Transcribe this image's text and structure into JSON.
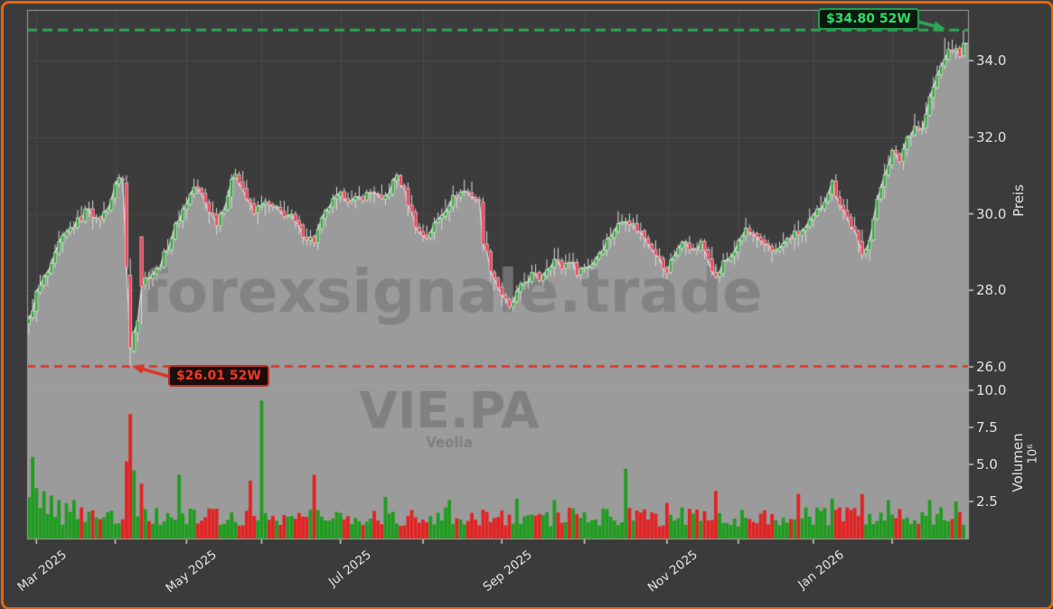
{
  "window": {
    "background": "#3b3b3b",
    "border_color": "#e8640e"
  },
  "chart_data": {
    "type": "candlestick_volume",
    "symbol": "VIE.PA",
    "company": "Veolia",
    "watermark": "forexsignale.trade",
    "price_axis": {
      "label": "Preis",
      "ticks": [
        26.0,
        28.0,
        30.0,
        32.0,
        34.0
      ],
      "tick_labels": [
        "26.0",
        "28.0",
        "30.0",
        "32.0",
        "34.0"
      ],
      "range": [
        25.55,
        35.35
      ]
    },
    "volume_axis": {
      "label": "Volumen",
      "unit": "10⁶",
      "ticks": [
        2.5,
        5.0,
        7.5,
        10.0
      ],
      "tick_labels": [
        "2.5",
        "5.0",
        "7.5",
        "10.0"
      ],
      "range": [
        0,
        10.4
      ]
    },
    "x_axis": {
      "months": [
        {
          "day": 2,
          "label": "Mar 2025"
        },
        {
          "day": 23,
          "label": null
        },
        {
          "day": 42,
          "label": "May 2025"
        },
        {
          "day": 62,
          "label": null
        },
        {
          "day": 83,
          "label": "Jul 2025"
        },
        {
          "day": 105,
          "label": null
        },
        {
          "day": 126,
          "label": "Sep 2025"
        },
        {
          "day": 148,
          "label": null
        },
        {
          "day": 170,
          "label": "Nov 2025"
        },
        {
          "day": 189,
          "label": null
        },
        {
          "day": 209,
          "label": "Jan 2026"
        },
        {
          "day": 230,
          "label": null
        }
      ]
    },
    "annotations": {
      "high_52w": {
        "label": "$34.80 52W",
        "value": 34.8,
        "text_color": "#2ee065",
        "border_color": "#1fa04a",
        "bg": "#0c1710",
        "line_color": "#2aa857"
      },
      "low_52w": {
        "label": "$26.01 52W",
        "value": 26.01,
        "text_color": "#f0382b",
        "border_color": "#bb2f27",
        "bg": "#1a0d0c",
        "line_color": "#dd3327"
      }
    },
    "n_candles": 250,
    "close_anchors": [
      [
        0,
        27.2
      ],
      [
        2,
        27.9
      ],
      [
        4,
        28.3
      ],
      [
        6,
        28.6
      ],
      [
        8,
        29.2
      ],
      [
        11,
        29.6
      ],
      [
        14,
        29.9
      ],
      [
        16,
        30.2
      ],
      [
        18,
        29.8
      ],
      [
        20,
        30.0
      ],
      [
        22,
        30.4
      ],
      [
        24,
        31.0
      ],
      [
        25,
        30.9
      ],
      [
        26,
        28.6
      ],
      [
        27,
        26.4
      ],
      [
        28,
        27.0
      ],
      [
        29,
        27.3
      ],
      [
        30,
        28.2
      ],
      [
        32,
        28.4
      ],
      [
        34,
        28.5
      ],
      [
        36,
        28.9
      ],
      [
        38,
        29.4
      ],
      [
        40,
        29.9
      ],
      [
        42,
        30.3
      ],
      [
        44,
        30.7
      ],
      [
        46,
        30.5
      ],
      [
        48,
        30.1
      ],
      [
        50,
        29.8
      ],
      [
        52,
        30.2
      ],
      [
        54,
        30.8
      ],
      [
        55,
        31.1
      ],
      [
        56,
        30.9
      ],
      [
        58,
        30.4
      ],
      [
        60,
        30.0
      ],
      [
        62,
        30.3
      ],
      [
        64,
        30.2
      ],
      [
        66,
        30.1
      ],
      [
        68,
        30.0
      ],
      [
        70,
        29.9
      ],
      [
        72,
        29.6
      ],
      [
        74,
        29.4
      ],
      [
        76,
        29.3
      ],
      [
        78,
        29.8
      ],
      [
        80,
        30.2
      ],
      [
        82,
        30.4
      ],
      [
        84,
        30.5
      ],
      [
        86,
        30.3
      ],
      [
        88,
        30.4
      ],
      [
        90,
        30.5
      ],
      [
        92,
        30.6
      ],
      [
        94,
        30.3
      ],
      [
        96,
        30.6
      ],
      [
        98,
        31.0
      ],
      [
        100,
        30.6
      ],
      [
        102,
        30.0
      ],
      [
        104,
        29.5
      ],
      [
        106,
        29.4
      ],
      [
        108,
        29.7
      ],
      [
        110,
        30.0
      ],
      [
        112,
        30.3
      ],
      [
        114,
        30.5
      ],
      [
        116,
        30.6
      ],
      [
        118,
        30.5
      ],
      [
        120,
        30.3
      ],
      [
        121,
        29.3
      ],
      [
        123,
        28.6
      ],
      [
        125,
        28.1
      ],
      [
        127,
        27.7
      ],
      [
        128,
        27.5
      ],
      [
        130,
        27.9
      ],
      [
        132,
        28.2
      ],
      [
        134,
        28.4
      ],
      [
        136,
        28.3
      ],
      [
        138,
        28.6
      ],
      [
        140,
        28.8
      ],
      [
        142,
        28.6
      ],
      [
        144,
        28.8
      ],
      [
        146,
        28.5
      ],
      [
        148,
        28.6
      ],
      [
        150,
        28.7
      ],
      [
        152,
        29.0
      ],
      [
        154,
        29.3
      ],
      [
        156,
        29.6
      ],
      [
        158,
        29.8
      ],
      [
        159,
        29.9
      ],
      [
        161,
        29.7
      ],
      [
        163,
        29.5
      ],
      [
        165,
        29.3
      ],
      [
        167,
        29.0
      ],
      [
        169,
        28.6
      ],
      [
        170,
        28.4
      ],
      [
        171,
        28.8
      ],
      [
        173,
        29.1
      ],
      [
        175,
        29.3
      ],
      [
        177,
        29.0
      ],
      [
        179,
        29.2
      ],
      [
        181,
        28.9
      ],
      [
        183,
        28.3
      ],
      [
        185,
        28.7
      ],
      [
        187,
        28.9
      ],
      [
        189,
        29.2
      ],
      [
        191,
        29.6
      ],
      [
        193,
        29.4
      ],
      [
        195,
        29.2
      ],
      [
        197,
        29.2
      ],
      [
        199,
        29.0
      ],
      [
        201,
        29.2
      ],
      [
        203,
        29.4
      ],
      [
        205,
        29.5
      ],
      [
        207,
        29.6
      ],
      [
        209,
        29.9
      ],
      [
        211,
        30.2
      ],
      [
        213,
        30.6
      ],
      [
        214,
        30.8
      ],
      [
        216,
        30.3
      ],
      [
        218,
        29.9
      ],
      [
        220,
        29.5
      ],
      [
        222,
        28.9
      ],
      [
        224,
        29.4
      ],
      [
        226,
        30.3
      ],
      [
        228,
        31.1
      ],
      [
        230,
        31.6
      ],
      [
        232,
        31.4
      ],
      [
        234,
        32.0
      ],
      [
        236,
        32.3
      ],
      [
        238,
        32.2
      ],
      [
        240,
        33.0
      ],
      [
        242,
        33.6
      ],
      [
        244,
        34.1
      ],
      [
        246,
        34.3
      ],
      [
        248,
        34.2
      ],
      [
        249,
        34.4
      ]
    ],
    "candle_overrides": {
      "26": {
        "open": 30.8,
        "close": 28.6
      },
      "27": {
        "open": 28.4,
        "close": 26.5,
        "low": 26.01
      },
      "30": {
        "open": 29.4,
        "close": 28.1
      },
      "121": {
        "open": 30.3,
        "close": 29.2
      },
      "244": {
        "high": 34.6
      },
      "249": {
        "high": 34.8,
        "close": 34.45
      }
    },
    "volume_spikes": {
      "0": 2.8,
      "1": 5.5,
      "2": 3.4,
      "4": 3.2,
      "6": 2.9,
      "8": 2.6,
      "10": 2.4,
      "12": 2.6,
      "26": 5.2,
      "27": 8.4,
      "28": 4.6,
      "30": 3.7,
      "40": 4.3,
      "59": 3.9,
      "62": 9.3,
      "76": 4.3,
      "95": 2.8,
      "112": 2.6,
      "130": 2.7,
      "140": 2.6,
      "159": 4.7,
      "170": 2.4,
      "183": 3.2,
      "205": 3.0,
      "214": 2.7,
      "222": 3.0,
      "229": 2.6,
      "240": 2.6,
      "247": 2.5
    },
    "colors": {
      "up": "#3fa44a",
      "up_edge": "#b9e8b9",
      "down": "#ef4055",
      "down_edge": "#f6b9c1",
      "wick": "#d9d9d9",
      "fill_area": "#9b9b9b",
      "close_line": "#e6e6e6",
      "volume_up": "#1f9d1f",
      "volume_down": "#e32222",
      "grid": "#4a4a4a",
      "frame": "#a0a0a0",
      "tick_text": "#e3e3e3",
      "watermark_main": "rgba(125,125,125,0.8)",
      "watermark_symbol": "rgba(95,95,95,0.45)"
    }
  }
}
